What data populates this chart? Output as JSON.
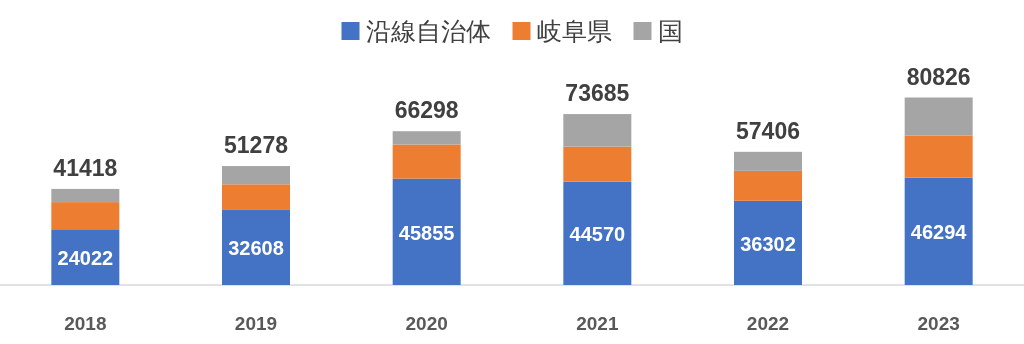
{
  "chart_data": {
    "type": "bar",
    "stacked": true,
    "legend": "top",
    "categories": [
      "2018",
      "2019",
      "2020",
      "2021",
      "2022",
      "2023"
    ],
    "series": [
      {
        "name": "沿線自治体",
        "color": "#4472c4",
        "values": [
          24022,
          32608,
          45855,
          44570,
          36302,
          46294
        ],
        "value_labels": [
          "24022",
          "32608",
          "45855",
          "44570",
          "36302",
          "46294"
        ]
      },
      {
        "name": "岐阜県",
        "color": "#ed7d31",
        "values": [
          11700,
          10800,
          14700,
          15100,
          12900,
          18100
        ]
      },
      {
        "name": "国",
        "color": "#a5a5a5",
        "values": [
          5696,
          7870,
          5743,
          14015,
          8204,
          16432
        ]
      }
    ],
    "totals": [
      "41418",
      "51278",
      "66298",
      "73685",
      "57406",
      "80826"
    ]
  }
}
